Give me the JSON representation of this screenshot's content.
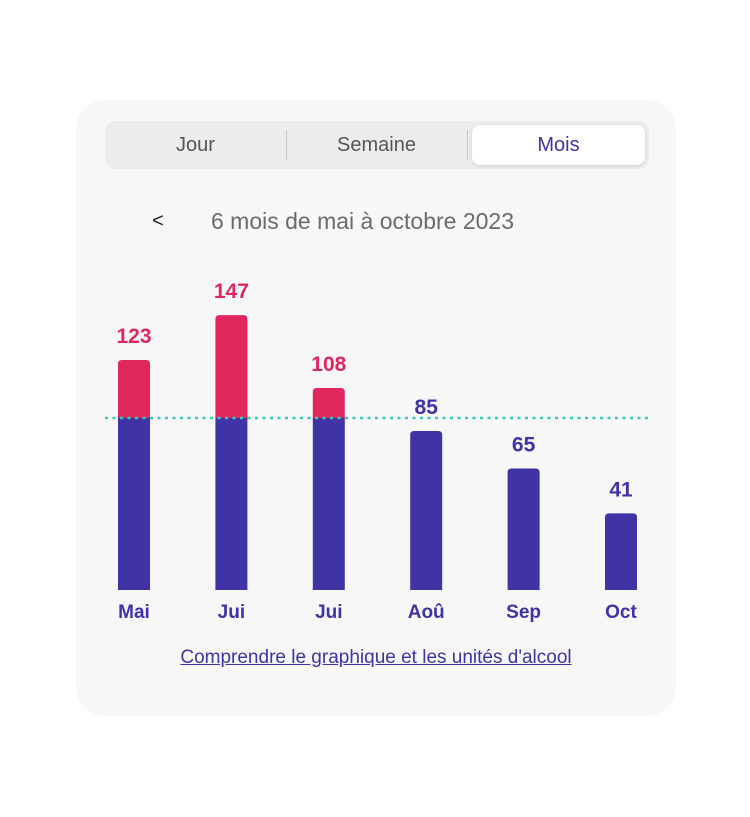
{
  "tabs": [
    {
      "label": "Jour",
      "selected": false
    },
    {
      "label": "Semaine",
      "selected": false
    },
    {
      "label": "Mois",
      "selected": true
    }
  ],
  "period": {
    "prev_symbol": "<",
    "label": "6 mois de mai à octobre 2023"
  },
  "link": {
    "label": "Comprendre le graphique et les unités d'alcool"
  },
  "colors": {
    "base": "#4033a6",
    "excess": "#e0285f",
    "threshold": "#3ec9b6",
    "value_low": "#4033a6",
    "value_high": "#e0285f"
  },
  "chart_data": {
    "type": "bar",
    "categories": [
      "Mai",
      "Jui",
      "Jui",
      "Aoû",
      "Sep",
      "Oct"
    ],
    "values": [
      123,
      147,
      108,
      85,
      65,
      41
    ],
    "threshold": 92,
    "ylim": [
      0,
      147
    ],
    "grid": false,
    "legend": "none"
  }
}
